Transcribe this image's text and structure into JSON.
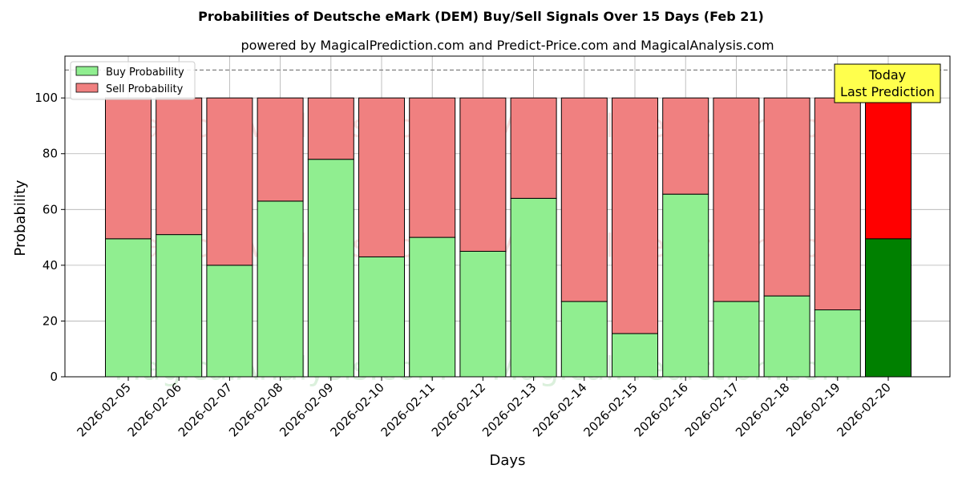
{
  "chart_data": {
    "type": "bar",
    "stacked": true,
    "title": "Probabilities of Deutsche eMark (DEM) Buy/Sell Signals Over 15 Days (Feb 21)",
    "subtitle": "powered by MagicalPrediction.com and Predict-Price.com and MagicalAnalysis.com",
    "xlabel": "Days",
    "ylabel": "Probability",
    "ylim": [
      0,
      115
    ],
    "yticks": [
      0,
      20,
      40,
      60,
      80,
      100
    ],
    "grid": true,
    "legend_position": "top-left",
    "categories": [
      "2026-02-05",
      "2026-02-06",
      "2026-02-07",
      "2026-02-08",
      "2026-02-09",
      "2026-02-10",
      "2026-02-11",
      "2026-02-12",
      "2026-02-13",
      "2026-02-14",
      "2026-02-15",
      "2026-02-16",
      "2026-02-17",
      "2026-02-18",
      "2026-02-19",
      "2026-02-20"
    ],
    "series": [
      {
        "name": "Buy Probability",
        "color": "#90ee90",
        "values": [
          49.5,
          51,
          40,
          63,
          78,
          43,
          50,
          45,
          64,
          27,
          15.5,
          65.5,
          27,
          29,
          24,
          49.5
        ]
      },
      {
        "name": "Sell Probability",
        "color": "#f08080",
        "values": [
          50.5,
          49,
          60,
          37,
          22,
          57,
          50,
          55,
          36,
          73,
          84.5,
          34.5,
          73,
          71,
          76,
          50.5
        ]
      }
    ],
    "highlight": {
      "index": 15,
      "buy_color": "#008000",
      "sell_color": "#ff0000"
    },
    "reference_line": 110,
    "annotation": {
      "line1": "Today",
      "line2": "Last Prediction",
      "bg": "#ffff4d"
    },
    "watermarks": [
      "MagicalAnalysis.com",
      "MagicalPrediction.com"
    ]
  }
}
